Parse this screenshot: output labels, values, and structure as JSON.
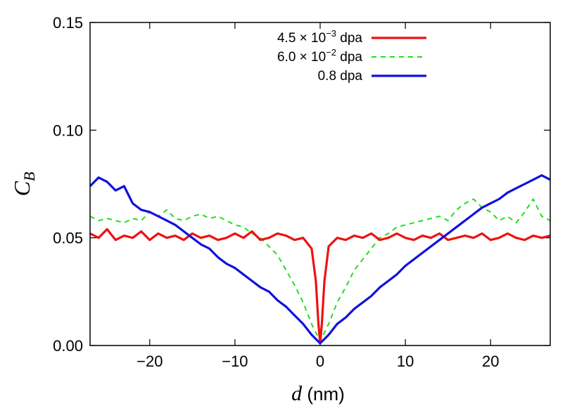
{
  "chart_data": {
    "type": "line",
    "xlabel_var": "d",
    "xlabel_unit": " (nm)",
    "ylabel_main": "C",
    "ylabel_sub": "B",
    "xlim": [
      -27,
      27
    ],
    "ylim": [
      0,
      0.15
    ],
    "xticks": [
      -20,
      -10,
      0,
      10,
      20
    ],
    "xtick_labels": [
      "−20",
      "−10",
      "0",
      "10",
      "20"
    ],
    "yticks": [
      0,
      0.05,
      0.1,
      0.15
    ],
    "ytick_labels": [
      "0.00",
      "0.05",
      "0.10",
      "0.15"
    ],
    "legend_position": "top-right",
    "series": [
      {
        "name": "4.5 × 10⁻³ dpa",
        "legend_base": "4.5 × 10",
        "legend_exp": "−3",
        "legend_unit": " dpa",
        "color": "#ee1111",
        "style": "solid",
        "points": [
          [
            -27,
            0.052
          ],
          [
            -26,
            0.05
          ],
          [
            -25,
            0.054
          ],
          [
            -24,
            0.049
          ],
          [
            -23,
            0.051
          ],
          [
            -22,
            0.05
          ],
          [
            -21,
            0.053
          ],
          [
            -20,
            0.049
          ],
          [
            -19,
            0.052
          ],
          [
            -18,
            0.05
          ],
          [
            -17,
            0.051
          ],
          [
            -16,
            0.049
          ],
          [
            -15,
            0.052
          ],
          [
            -14,
            0.05
          ],
          [
            -13,
            0.051
          ],
          [
            -12,
            0.049
          ],
          [
            -11,
            0.05
          ],
          [
            -10,
            0.052
          ],
          [
            -9,
            0.05
          ],
          [
            -8,
            0.053
          ],
          [
            -7,
            0.049
          ],
          [
            -6,
            0.05
          ],
          [
            -5,
            0.052
          ],
          [
            -4,
            0.051
          ],
          [
            -3,
            0.049
          ],
          [
            -2,
            0.05
          ],
          [
            -1,
            0.045
          ],
          [
            -0.5,
            0.03
          ],
          [
            -0.2,
            0.01
          ],
          [
            0,
            0.001
          ],
          [
            0.2,
            0.01
          ],
          [
            0.5,
            0.03
          ],
          [
            1,
            0.046
          ],
          [
            2,
            0.05
          ],
          [
            3,
            0.049
          ],
          [
            4,
            0.051
          ],
          [
            5,
            0.05
          ],
          [
            6,
            0.052
          ],
          [
            7,
            0.049
          ],
          [
            8,
            0.05
          ],
          [
            9,
            0.052
          ],
          [
            10,
            0.05
          ],
          [
            11,
            0.049
          ],
          [
            12,
            0.051
          ],
          [
            13,
            0.05
          ],
          [
            14,
            0.052
          ],
          [
            15,
            0.049
          ],
          [
            16,
            0.05
          ],
          [
            17,
            0.051
          ],
          [
            18,
            0.05
          ],
          [
            19,
            0.052
          ],
          [
            20,
            0.049
          ],
          [
            21,
            0.05
          ],
          [
            22,
            0.052
          ],
          [
            23,
            0.05
          ],
          [
            24,
            0.049
          ],
          [
            25,
            0.051
          ],
          [
            26,
            0.05
          ],
          [
            27,
            0.051
          ]
        ]
      },
      {
        "name": "6.0 × 10⁻² dpa",
        "legend_base": "6.0 × 10",
        "legend_exp": "−2",
        "legend_unit": " dpa",
        "color": "#22dd22",
        "style": "dashed",
        "points": [
          [
            -27,
            0.06
          ],
          [
            -26,
            0.058
          ],
          [
            -25,
            0.059
          ],
          [
            -24,
            0.058
          ],
          [
            -23,
            0.057
          ],
          [
            -22,
            0.059
          ],
          [
            -21,
            0.058
          ],
          [
            -20,
            0.062
          ],
          [
            -19,
            0.06
          ],
          [
            -18,
            0.063
          ],
          [
            -17,
            0.059
          ],
          [
            -16,
            0.058
          ],
          [
            -15,
            0.06
          ],
          [
            -14,
            0.061
          ],
          [
            -13,
            0.059
          ],
          [
            -12,
            0.06
          ],
          [
            -11,
            0.058
          ],
          [
            -10,
            0.056
          ],
          [
            -9,
            0.055
          ],
          [
            -8,
            0.052
          ],
          [
            -7,
            0.05
          ],
          [
            -6,
            0.046
          ],
          [
            -5,
            0.042
          ],
          [
            -4,
            0.035
          ],
          [
            -3,
            0.028
          ],
          [
            -2,
            0.02
          ],
          [
            -1,
            0.01
          ],
          [
            0,
            0.002
          ],
          [
            1,
            0.01
          ],
          [
            2,
            0.02
          ],
          [
            3,
            0.027
          ],
          [
            4,
            0.035
          ],
          [
            5,
            0.04
          ],
          [
            6,
            0.045
          ],
          [
            7,
            0.05
          ],
          [
            8,
            0.052
          ],
          [
            9,
            0.055
          ],
          [
            10,
            0.056
          ],
          [
            11,
            0.057
          ],
          [
            12,
            0.058
          ],
          [
            13,
            0.059
          ],
          [
            14,
            0.06
          ],
          [
            15,
            0.058
          ],
          [
            16,
            0.063
          ],
          [
            17,
            0.066
          ],
          [
            18,
            0.068
          ],
          [
            19,
            0.064
          ],
          [
            20,
            0.062
          ],
          [
            21,
            0.058
          ],
          [
            22,
            0.06
          ],
          [
            23,
            0.057
          ],
          [
            24,
            0.062
          ],
          [
            25,
            0.068
          ],
          [
            26,
            0.06
          ],
          [
            27,
            0.058
          ]
        ]
      },
      {
        "name": "0.8 dpa",
        "legend_base": "0.8 dpa",
        "legend_exp": "",
        "legend_unit": "",
        "color": "#1111dd",
        "style": "solid",
        "points": [
          [
            -27,
            0.074
          ],
          [
            -26,
            0.078
          ],
          [
            -25,
            0.076
          ],
          [
            -24,
            0.072
          ],
          [
            -23,
            0.074
          ],
          [
            -22,
            0.066
          ],
          [
            -21,
            0.063
          ],
          [
            -20,
            0.062
          ],
          [
            -19,
            0.06
          ],
          [
            -18,
            0.058
          ],
          [
            -17,
            0.056
          ],
          [
            -16,
            0.053
          ],
          [
            -15,
            0.05
          ],
          [
            -14,
            0.047
          ],
          [
            -13,
            0.045
          ],
          [
            -12,
            0.041
          ],
          [
            -11,
            0.038
          ],
          [
            -10,
            0.036
          ],
          [
            -9,
            0.033
          ],
          [
            -8,
            0.03
          ],
          [
            -7,
            0.027
          ],
          [
            -6,
            0.025
          ],
          [
            -5,
            0.021
          ],
          [
            -4,
            0.018
          ],
          [
            -3,
            0.014
          ],
          [
            -2,
            0.01
          ],
          [
            -1,
            0.005
          ],
          [
            0,
            0.001
          ],
          [
            1,
            0.005
          ],
          [
            2,
            0.01
          ],
          [
            3,
            0.013
          ],
          [
            4,
            0.017
          ],
          [
            5,
            0.02
          ],
          [
            6,
            0.023
          ],
          [
            7,
            0.027
          ],
          [
            8,
            0.03
          ],
          [
            9,
            0.033
          ],
          [
            10,
            0.037
          ],
          [
            11,
            0.04
          ],
          [
            12,
            0.043
          ],
          [
            13,
            0.046
          ],
          [
            14,
            0.049
          ],
          [
            15,
            0.052
          ],
          [
            16,
            0.055
          ],
          [
            17,
            0.058
          ],
          [
            18,
            0.061
          ],
          [
            19,
            0.064
          ],
          [
            20,
            0.066
          ],
          [
            21,
            0.068
          ],
          [
            22,
            0.071
          ],
          [
            23,
            0.073
          ],
          [
            24,
            0.075
          ],
          [
            25,
            0.077
          ],
          [
            26,
            0.079
          ],
          [
            27,
            0.077
          ]
        ]
      }
    ]
  }
}
